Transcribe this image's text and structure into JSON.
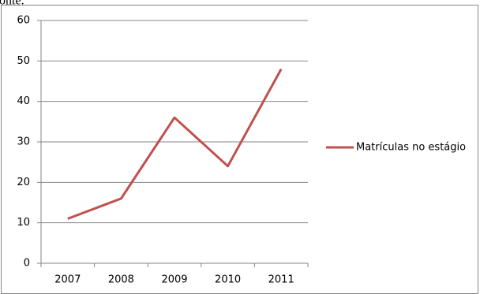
{
  "chart_data": {
    "type": "line",
    "annotation": "onte:",
    "categories": [
      "2007",
      "2008",
      "2009",
      "2010",
      "2011"
    ],
    "series": [
      {
        "name": "Matrículas no estágio",
        "color": "#c0504d",
        "values": [
          11,
          16,
          36,
          24,
          48
        ]
      }
    ],
    "ylim": [
      0,
      60
    ],
    "yticks": [
      0,
      10,
      20,
      30,
      40,
      50,
      60
    ],
    "grid": true,
    "legend": "right"
  }
}
